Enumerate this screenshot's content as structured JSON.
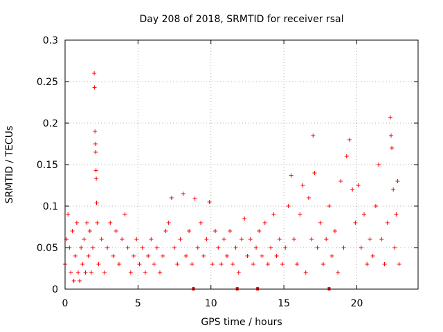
{
  "chart_data": {
    "type": "scatter",
    "title": "Day 208 of 2018, SRMTID for receiver rsal",
    "xlabel": "GPS time / hours",
    "ylabel": "SRMTID / TECUs",
    "xlim": [
      0,
      24.2
    ],
    "ylim": [
      0,
      0.3
    ],
    "x_ticks": [
      0,
      5,
      10,
      15,
      20
    ],
    "x_tick_labels": [
      "0",
      "5",
      "10",
      "15",
      "20"
    ],
    "y_ticks": [
      0,
      0.05,
      0.1,
      0.15,
      0.2,
      0.25,
      0.3
    ],
    "y_tick_labels": [
      "0",
      "0.05",
      "0.1",
      "0.15",
      "0.2",
      "0.25",
      "0.3"
    ],
    "grid": true,
    "marker": "+",
    "marker_color": "#ff0000",
    "series": [
      {
        "name": "SRMTID",
        "points": [
          [
            0.0,
            0.03
          ],
          [
            0.1,
            0.06
          ],
          [
            0.2,
            0.09
          ],
          [
            0.3,
            0.05
          ],
          [
            0.4,
            0.02
          ],
          [
            0.5,
            0.07
          ],
          [
            0.6,
            0.01
          ],
          [
            0.7,
            0.04
          ],
          [
            0.8,
            0.08
          ],
          [
            0.9,
            0.02
          ],
          [
            1.0,
            0.01
          ],
          [
            1.1,
            0.05
          ],
          [
            1.2,
            0.03
          ],
          [
            1.3,
            0.06
          ],
          [
            1.4,
            0.02
          ],
          [
            1.5,
            0.08
          ],
          [
            1.6,
            0.04
          ],
          [
            1.7,
            0.07
          ],
          [
            1.8,
            0.02
          ],
          [
            1.9,
            0.05
          ],
          [
            2.0,
            0.26
          ],
          [
            2.02,
            0.243
          ],
          [
            2.05,
            0.19
          ],
          [
            2.08,
            0.175
          ],
          [
            2.1,
            0.165
          ],
          [
            2.12,
            0.143
          ],
          [
            2.14,
            0.133
          ],
          [
            2.16,
            0.104
          ],
          [
            2.2,
            0.08
          ],
          [
            2.3,
            0.03
          ],
          [
            2.5,
            0.06
          ],
          [
            2.7,
            0.02
          ],
          [
            2.9,
            0.05
          ],
          [
            3.1,
            0.08
          ],
          [
            3.3,
            0.04
          ],
          [
            3.5,
            0.07
          ],
          [
            3.7,
            0.03
          ],
          [
            3.9,
            0.06
          ],
          [
            4.1,
            0.09
          ],
          [
            4.3,
            0.05
          ],
          [
            4.5,
            0.02
          ],
          [
            4.7,
            0.04
          ],
          [
            4.9,
            0.06
          ],
          [
            5.1,
            0.03
          ],
          [
            5.3,
            0.05
          ],
          [
            5.5,
            0.02
          ],
          [
            5.7,
            0.04
          ],
          [
            5.9,
            0.06
          ],
          [
            6.1,
            0.03
          ],
          [
            6.3,
            0.05
          ],
          [
            6.5,
            0.02
          ],
          [
            6.7,
            0.04
          ],
          [
            6.9,
            0.07
          ],
          [
            7.1,
            0.08
          ],
          [
            7.3,
            0.11
          ],
          [
            7.5,
            0.05
          ],
          [
            7.7,
            0.03
          ],
          [
            7.9,
            0.06
          ],
          [
            8.1,
            0.115
          ],
          [
            8.3,
            0.04
          ],
          [
            8.5,
            0.07
          ],
          [
            8.7,
            0.03
          ],
          [
            8.9,
            0.109
          ],
          [
            9.1,
            0.05
          ],
          [
            9.3,
            0.08
          ],
          [
            9.5,
            0.04
          ],
          [
            9.7,
            0.06
          ],
          [
            9.9,
            0.105
          ],
          [
            10.1,
            0.03
          ],
          [
            10.3,
            0.07
          ],
          [
            10.5,
            0.05
          ],
          [
            10.7,
            0.03
          ],
          [
            10.9,
            0.06
          ],
          [
            11.1,
            0.04
          ],
          [
            11.3,
            0.07
          ],
          [
            11.5,
            0.03
          ],
          [
            11.7,
            0.05
          ],
          [
            11.9,
            0.02
          ],
          [
            12.1,
            0.06
          ],
          [
            12.3,
            0.085
          ],
          [
            12.5,
            0.04
          ],
          [
            12.7,
            0.06
          ],
          [
            12.9,
            0.03
          ],
          [
            13.1,
            0.05
          ],
          [
            13.3,
            0.07
          ],
          [
            13.5,
            0.04
          ],
          [
            13.7,
            0.08
          ],
          [
            13.9,
            0.03
          ],
          [
            14.1,
            0.05
          ],
          [
            14.3,
            0.09
          ],
          [
            14.5,
            0.04
          ],
          [
            14.7,
            0.06
          ],
          [
            14.9,
            0.03
          ],
          [
            15.1,
            0.05
          ],
          [
            15.3,
            0.1
          ],
          [
            15.5,
            0.137
          ],
          [
            15.7,
            0.06
          ],
          [
            15.9,
            0.03
          ],
          [
            16.1,
            0.09
          ],
          [
            16.3,
            0.125
          ],
          [
            16.5,
            0.02
          ],
          [
            16.7,
            0.11
          ],
          [
            16.9,
            0.06
          ],
          [
            17.0,
            0.185
          ],
          [
            17.1,
            0.14
          ],
          [
            17.3,
            0.05
          ],
          [
            17.5,
            0.08
          ],
          [
            17.7,
            0.03
          ],
          [
            17.9,
            0.06
          ],
          [
            18.1,
            0.1
          ],
          [
            18.3,
            0.04
          ],
          [
            18.5,
            0.07
          ],
          [
            18.7,
            0.02
          ],
          [
            18.9,
            0.13
          ],
          [
            19.1,
            0.05
          ],
          [
            19.3,
            0.16
          ],
          [
            19.5,
            0.18
          ],
          [
            19.7,
            0.12
          ],
          [
            19.9,
            0.08
          ],
          [
            20.1,
            0.125
          ],
          [
            20.3,
            0.05
          ],
          [
            20.5,
            0.09
          ],
          [
            20.7,
            0.03
          ],
          [
            20.9,
            0.06
          ],
          [
            21.1,
            0.04
          ],
          [
            21.3,
            0.1
          ],
          [
            21.5,
            0.15
          ],
          [
            21.7,
            0.06
          ],
          [
            21.9,
            0.03
          ],
          [
            22.1,
            0.08
          ],
          [
            22.3,
            0.207
          ],
          [
            22.35,
            0.185
          ],
          [
            22.4,
            0.17
          ],
          [
            22.5,
            0.12
          ],
          [
            22.6,
            0.05
          ],
          [
            22.7,
            0.09
          ],
          [
            22.8,
            0.13
          ],
          [
            22.9,
            0.03
          ]
        ]
      }
    ],
    "axis_markers_x": [
      8.8,
      11.8,
      13.2,
      18.1
    ]
  }
}
